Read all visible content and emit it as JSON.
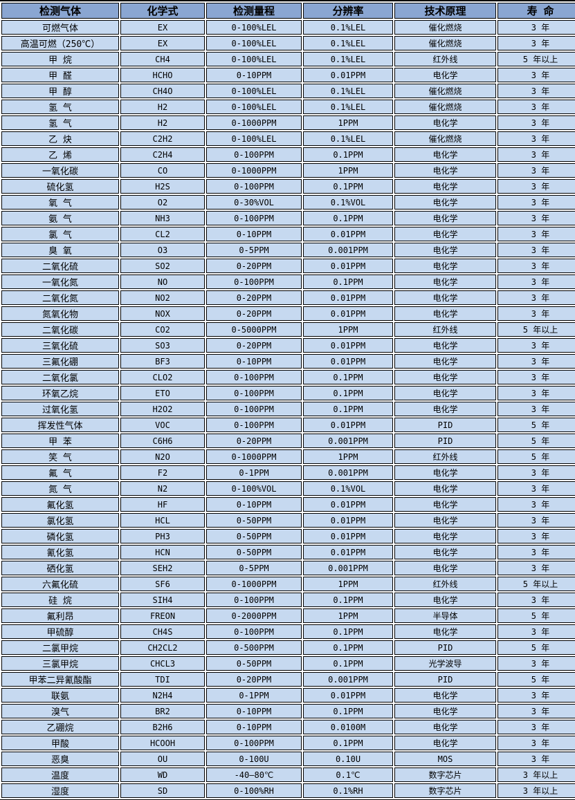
{
  "table": {
    "columns": [
      "检测气体",
      "化学式",
      "检测量程",
      "分辨率",
      "技术原理",
      "寿 命"
    ],
    "rows": [
      [
        "可燃气体",
        "EX",
        "0-100%LEL",
        "0.1%LEL",
        "催化燃烧",
        "3 年"
      ],
      [
        "高温可燃（250℃）",
        "EX",
        "0-100%LEL",
        "0.1%LEL",
        "催化燃烧",
        "3 年"
      ],
      [
        "甲 烷",
        "CH4",
        "0-100%LEL",
        "0.1%LEL",
        "红外线",
        "5 年以上"
      ],
      [
        "甲 醛",
        "HCHO",
        "0-10PPM",
        "0.01PPM",
        "电化学",
        "3 年"
      ],
      [
        "甲 醇",
        "CH4O",
        "0-100%LEL",
        "0.1%LEL",
        "催化燃烧",
        "3 年"
      ],
      [
        "氢 气",
        "H2",
        "0-100%LEL",
        "0.1%LEL",
        "催化燃烧",
        "3 年"
      ],
      [
        "氢 气",
        "H2",
        "0-1000PPM",
        "1PPM",
        "电化学",
        "3 年"
      ],
      [
        "乙 炔",
        "C2H2",
        "0-100%LEL",
        "0.1%LEL",
        "催化燃烧",
        "3 年"
      ],
      [
        "乙 烯",
        "C2H4",
        "0-100PPM",
        "0.1PPM",
        "电化学",
        "3 年"
      ],
      [
        "一氧化碳",
        "CO",
        "0-1000PPM",
        "1PPM",
        "电化学",
        "3 年"
      ],
      [
        "硫化氢",
        "H2S",
        "0-100PPM",
        "0.1PPM",
        "电化学",
        "3 年"
      ],
      [
        "氧 气",
        "O2",
        "0-30%VOL",
        "0.1%VOL",
        "电化学",
        "3 年"
      ],
      [
        "氨 气",
        "NH3",
        "0-100PPM",
        "0.1PPM",
        "电化学",
        "3 年"
      ],
      [
        "氯 气",
        "CL2",
        "0-10PPM",
        "0.01PPM",
        "电化学",
        "3 年"
      ],
      [
        "臭 氧",
        "O3",
        "0-5PPM",
        "0.001PPM",
        "电化学",
        "3 年"
      ],
      [
        "二氧化硫",
        "SO2",
        "0-20PPM",
        "0.01PPM",
        "电化学",
        "3 年"
      ],
      [
        "一氧化氮",
        "NO",
        "0-100PPM",
        "0.1PPM",
        "电化学",
        "3 年"
      ],
      [
        "二氧化氮",
        "NO2",
        "0-20PPM",
        "0.01PPM",
        "电化学",
        "3 年"
      ],
      [
        "氮氧化物",
        "NOX",
        "0-20PPM",
        "0.01PPM",
        "电化学",
        "3 年"
      ],
      [
        "二氧化碳",
        "CO2",
        "0-5000PPM",
        "1PPM",
        "红外线",
        "5 年以上"
      ],
      [
        "三氧化硫",
        "SO3",
        "0-20PPM",
        "0.01PPM",
        "电化学",
        "3 年"
      ],
      [
        "三氟化硼",
        "BF3",
        "0-10PPM",
        "0.01PPM",
        "电化学",
        "3 年"
      ],
      [
        "二氧化氯",
        "CLO2",
        "0-100PPM",
        "0.1PPM",
        "电化学",
        "3 年"
      ],
      [
        "环氧乙烷",
        "ETO",
        "0-100PPM",
        "0.1PPM",
        "电化学",
        "3 年"
      ],
      [
        "过氧化氢",
        "H2O2",
        "0-100PPM",
        "0.1PPM",
        "电化学",
        "3 年"
      ],
      [
        "挥发性气体",
        "VOC",
        "0-100PPM",
        "0.01PPM",
        "PID",
        "5 年"
      ],
      [
        "甲 苯",
        "C6H6",
        "0-20PPM",
        "0.001PPM",
        "PID",
        "5 年"
      ],
      [
        "笑 气",
        "N2O",
        "0-1000PPM",
        "1PPM",
        "红外线",
        "5 年"
      ],
      [
        "氟 气",
        "F2",
        "0-1PPM",
        "0.001PPM",
        "电化学",
        "3 年"
      ],
      [
        "氮 气",
        "N2",
        "0-100%VOL",
        "0.1%VOL",
        "电化学",
        "3 年"
      ],
      [
        "氟化氢",
        "HF",
        "0-10PPM",
        "0.01PPM",
        "电化学",
        "3 年"
      ],
      [
        "氯化氢",
        "HCL",
        "0-50PPM",
        "0.01PPM",
        "电化学",
        "3 年"
      ],
      [
        "磷化氢",
        "PH3",
        "0-50PPM",
        "0.01PPM",
        "电化学",
        "3 年"
      ],
      [
        "氰化氢",
        "HCN",
        "0-50PPM",
        "0.01PPM",
        "电化学",
        "3 年"
      ],
      [
        "硒化氢",
        "SEH2",
        "0-5PPM",
        "0.001PPM",
        "电化学",
        "3 年"
      ],
      [
        "六氟化硫",
        "SF6",
        "0-1000PPM",
        "1PPM",
        "红外线",
        "5 年以上"
      ],
      [
        "硅 烷",
        "SIH4",
        "0-100PPM",
        "0.1PPM",
        "电化学",
        "3 年"
      ],
      [
        "氟利昂",
        "FREON",
        "0-2000PPM",
        "1PPM",
        "半导体",
        "5 年"
      ],
      [
        "甲硫醇",
        "CH4S",
        "0-100PPM",
        "0.1PPM",
        "电化学",
        "3 年"
      ],
      [
        "二氯甲烷",
        "CH2CL2",
        "0-500PPM",
        "0.1PPM",
        "PID",
        "5 年"
      ],
      [
        "三氯甲烷",
        "CHCL3",
        "0-50PPM",
        "0.1PPM",
        "光学波导",
        "3 年"
      ],
      [
        "甲苯二异氰酸酯",
        "TDI",
        "0-20PPM",
        "0.001PPM",
        "PID",
        "5 年"
      ],
      [
        "联氨",
        "N2H4",
        "0-1PPM",
        "0.01PPM",
        "电化学",
        "3 年"
      ],
      [
        "溴气",
        "BR2",
        "0-10PPM",
        "0.1PPM",
        "电化学",
        "3 年"
      ],
      [
        "乙硼烷",
        "B2H6",
        "0-10PPM",
        "0.0100M",
        "电化学",
        "3 年"
      ],
      [
        "甲酸",
        "HCOOH",
        "0-100PPM",
        "0.1PPM",
        "电化学",
        "3 年"
      ],
      [
        "恶臭",
        "OU",
        "0-100U",
        "0.10U",
        "MOS",
        "3 年"
      ],
      [
        "温度",
        "WD",
        "-40—80℃",
        "0.1℃",
        "数字芯片",
        "3 年以上"
      ],
      [
        "湿度",
        "SD",
        "0-100%RH",
        "0.1%RH",
        "数字芯片",
        "3 年以上"
      ]
    ],
    "colors": {
      "header_bg": "#8aa6d2",
      "row_bg": "#c6d9f0",
      "border": "#000000",
      "gap": "#ffffff",
      "text": "#000000"
    }
  }
}
